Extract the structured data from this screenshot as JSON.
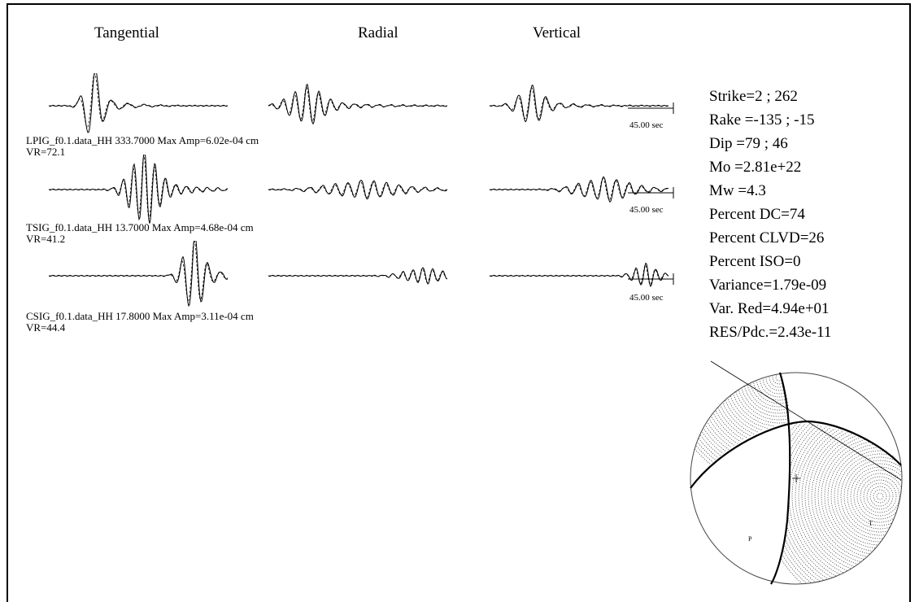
{
  "headers": {
    "tangential": "Tangential",
    "radial": "Radial",
    "vertical": "Vertical"
  },
  "stations": [
    {
      "label": "LPIG_f0.1.data_HH 333.7000 Max Amp=6.02e-04 cm",
      "vr": "VR=72.1",
      "scale": "45.00 sec"
    },
    {
      "label": "TSIG_f0.1.data_HH 13.7000 Max Amp=4.68e-04 cm",
      "vr": "VR=41.2",
      "scale": "45.00 sec"
    },
    {
      "label": "CSIG_f0.1.data_HH 17.8000 Max Amp=3.11e-04 cm",
      "vr": "VR=44.4",
      "scale": "45.00 sec"
    }
  ],
  "params": {
    "strike": "Strike=2 ; 262",
    "rake": "Rake =-135 ; -15",
    "dip": "Dip   =79 ; 46",
    "mo": "Mo    =2.81e+22",
    "mw": "Mw    =4.3",
    "dc": "Percent DC=74",
    "clvd": "Percent CLVD=26",
    "iso": "Percent ISO=0",
    "variance": "Variance=1.79e-09",
    "var_red": "Var. Red=4.94e+01",
    "res": "RES/Pdc.=2.43e-11"
  }
}
